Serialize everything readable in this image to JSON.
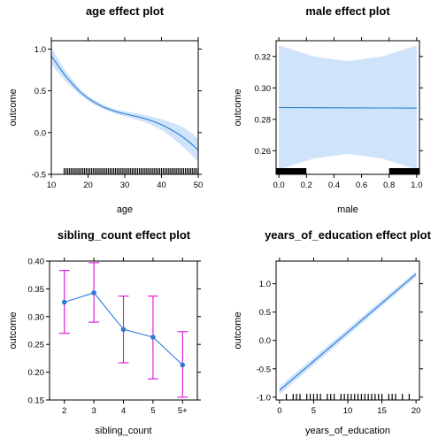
{
  "chart_data": [
    {
      "type": "line",
      "title": "age effect plot",
      "xlabel": "age",
      "ylabel": "outcome",
      "xlim": [
        10,
        50
      ],
      "ylim": [
        -0.5,
        1.1
      ],
      "xticks": [
        "10",
        "20",
        "30",
        "40",
        "50"
      ],
      "yticks": [
        "-0.5",
        "0.0",
        "0.5",
        "1.0"
      ],
      "x": [
        10,
        12,
        14,
        16,
        18,
        20,
        22,
        24,
        26,
        28,
        30,
        32,
        34,
        36,
        38,
        40,
        42,
        44,
        46,
        48,
        50
      ],
      "y": [
        0.92,
        0.79,
        0.67,
        0.57,
        0.48,
        0.41,
        0.355,
        0.31,
        0.275,
        0.245,
        0.225,
        0.205,
        0.185,
        0.16,
        0.13,
        0.095,
        0.05,
        0.0,
        -0.06,
        -0.13,
        -0.21
      ],
      "lower": [
        0.82,
        0.71,
        0.61,
        0.52,
        0.445,
        0.38,
        0.325,
        0.285,
        0.25,
        0.22,
        0.195,
        0.17,
        0.145,
        0.115,
        0.075,
        0.03,
        -0.03,
        -0.1,
        -0.18,
        -0.26,
        -0.35
      ],
      "upper": [
        1.02,
        0.87,
        0.73,
        0.62,
        0.515,
        0.44,
        0.385,
        0.335,
        0.3,
        0.27,
        0.255,
        0.24,
        0.225,
        0.205,
        0.185,
        0.16,
        0.13,
        0.1,
        0.06,
        0.0,
        -0.07
      ],
      "rug": [
        13.5,
        14,
        14.5,
        15,
        15.5,
        16,
        16.5,
        17,
        17.5,
        18,
        18.5,
        19,
        19.5,
        20,
        20.5,
        21,
        21.5,
        22,
        22.5,
        23,
        23.5,
        24,
        24.5,
        25,
        25.5,
        26,
        26.5,
        27,
        27.5,
        28,
        28.5,
        29,
        29.5,
        30,
        30.5,
        31,
        31.5,
        32,
        32.5,
        33,
        33.5,
        34,
        34.5,
        35,
        35.5,
        36,
        36.5,
        37,
        37.5,
        38,
        38.5,
        39,
        39.5,
        40,
        40.5,
        41,
        41.5,
        42,
        42.5,
        43,
        43.5,
        44,
        44.5,
        45,
        45.5,
        46,
        46.5,
        47,
        47.5,
        48,
        48.5,
        49,
        49.5,
        50
      ]
    },
    {
      "type": "line",
      "title": "male effect plot",
      "xlabel": "male",
      "ylabel": "outcome",
      "xlim": [
        -0.02,
        1.02
      ],
      "ylim": [
        0.245,
        0.33
      ],
      "xticks": [
        "0.0",
        "0.2",
        "0.4",
        "0.6",
        "0.8",
        "1.0"
      ],
      "yticks": [
        "0.26",
        "0.28",
        "0.30",
        "0.32"
      ],
      "x": [
        0,
        0.25,
        0.5,
        0.75,
        1.0
      ],
      "y": [
        0.2875,
        0.2874,
        0.2873,
        0.2872,
        0.2871
      ],
      "lower": [
        0.248,
        0.255,
        0.258,
        0.255,
        0.248
      ],
      "upper": [
        0.327,
        0.32,
        0.317,
        0.32,
        0.327
      ],
      "rug_bars": [
        [
          -0.02,
          0.2
        ],
        [
          0.8,
          1.02
        ]
      ]
    },
    {
      "type": "line",
      "title": "sibling_count effect plot",
      "xlabel": "sibling_count",
      "ylabel": "outcome",
      "ylim": [
        0.15,
        0.4
      ],
      "categories": [
        "2",
        "3",
        "4",
        "5",
        "5+"
      ],
      "yticks": [
        "0.15",
        "0.20",
        "0.25",
        "0.30",
        "0.35",
        "0.40"
      ],
      "values": [
        0.326,
        0.343,
        0.277,
        0.263,
        0.213
      ],
      "lower": [
        0.27,
        0.29,
        0.217,
        0.188,
        0.155
      ],
      "upper": [
        0.383,
        0.397,
        0.337,
        0.337,
        0.273
      ]
    },
    {
      "type": "line",
      "title": "years_of_education effect plot",
      "xlabel": "years_of_education",
      "ylabel": "outcome",
      "xlim": [
        -0.5,
        20.5
      ],
      "ylim": [
        -1.05,
        1.4
      ],
      "xticks": [
        "0",
        "5",
        "10",
        "15",
        "20"
      ],
      "yticks": [
        "-1.0",
        "-0.5",
        "0.0",
        "0.5",
        "1.0"
      ],
      "x": [
        0,
        20
      ],
      "y": [
        -0.88,
        1.17
      ],
      "lower": [
        -0.95,
        1.12
      ],
      "upper": [
        -0.81,
        1.22
      ],
      "rug": [
        1,
        2,
        2.5,
        3,
        4,
        4.5,
        5,
        5.5,
        6,
        7,
        7.5,
        8,
        9,
        9.5,
        10,
        10.5,
        11,
        11.5,
        12,
        12.5,
        13,
        13.5,
        14,
        14.5,
        15,
        16,
        16.5,
        17,
        18,
        19
      ]
    }
  ]
}
